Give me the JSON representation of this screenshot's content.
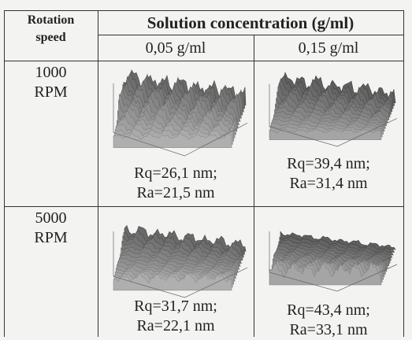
{
  "header": {
    "row_label": [
      "Rotation",
      "speed"
    ],
    "group": "Solution concentration (g/ml)",
    "columns": [
      "0,05 g/ml",
      "0,15 g/ml"
    ]
  },
  "rows": [
    {
      "label": [
        "1000",
        "RPM"
      ],
      "cells": [
        [
          "Rq=26,1 nm;",
          "Ra=21,5 nm"
        ],
        [
          "Rq=39,4 nm;",
          "Ra=31,4 nm"
        ]
      ]
    },
    {
      "label": [
        "5000",
        "RPM"
      ],
      "cells": [
        [
          "Rq=31,7 nm;",
          "Ra=22,1 nm"
        ],
        [
          "Rq=43,4 nm;",
          "Ra=33,1 nm"
        ]
      ]
    }
  ]
}
